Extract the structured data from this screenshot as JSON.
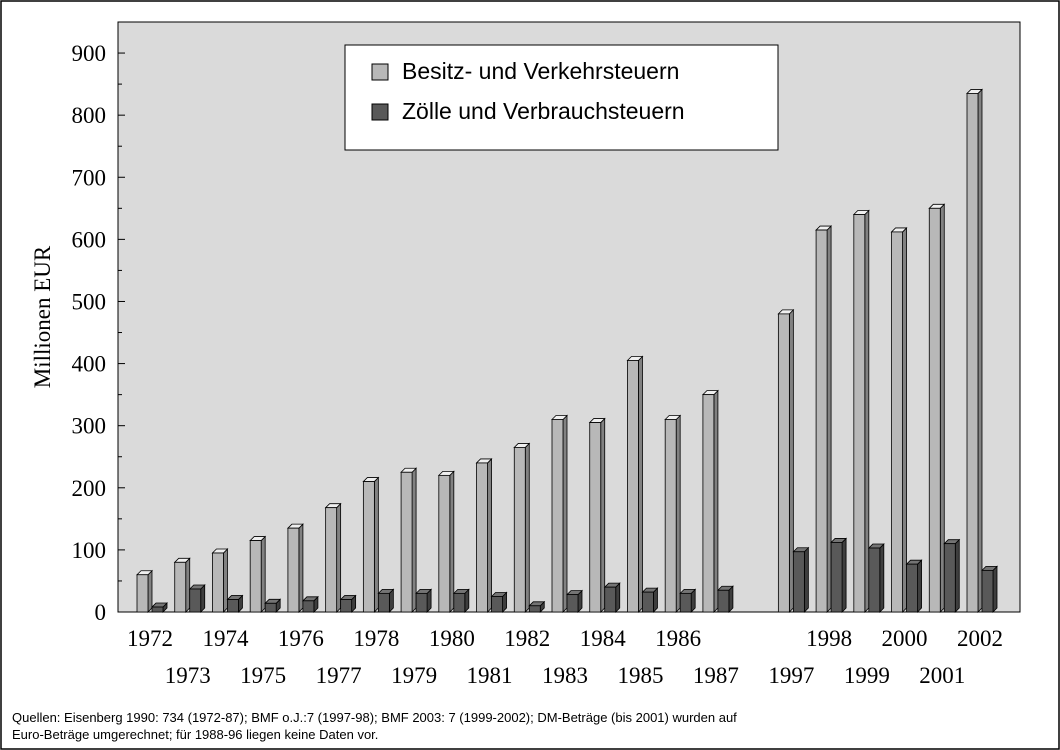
{
  "chart_data": {
    "type": "bar3d",
    "ylabel": "Millionen EUR",
    "categories": [
      "1972",
      "1973",
      "1974",
      "1975",
      "1976",
      "1977",
      "1978",
      "1979",
      "1980",
      "1981",
      "1982",
      "1983",
      "1984",
      "1985",
      "1986",
      "1987",
      null,
      "1997",
      "1998",
      "1999",
      "2000",
      "2001",
      "2002"
    ],
    "series": [
      {
        "name": "Besitz- und Verkehrsteuern",
        "color": "#b8b8b8",
        "values": [
          60,
          80,
          95,
          115,
          135,
          168,
          210,
          225,
          220,
          240,
          265,
          310,
          305,
          405,
          310,
          350,
          null,
          480,
          615,
          640,
          612,
          650,
          835
        ]
      },
      {
        "name": "Zölle und Verbrauchsteuern",
        "color": "#595959",
        "values": [
          8,
          37,
          20,
          14,
          18,
          20,
          30,
          30,
          30,
          25,
          10,
          28,
          40,
          32,
          30,
          35,
          null,
          97,
          112,
          103,
          77,
          110,
          67
        ]
      }
    ],
    "ylim": [
      0,
      950
    ],
    "yticks": [
      0,
      100,
      200,
      300,
      400,
      500,
      600,
      700,
      800,
      900
    ],
    "note": [
      "Quellen: Eisenberg 1990: 734 (1972-87); BMF o.J.:7 (1997-98); BMF 2003: 7 (1999-2002); DM-Beträge (bis 2001) wurden auf",
      "Euro-Beträge umgerechnet; für 1988-96 liegen keine Daten vor."
    ]
  }
}
